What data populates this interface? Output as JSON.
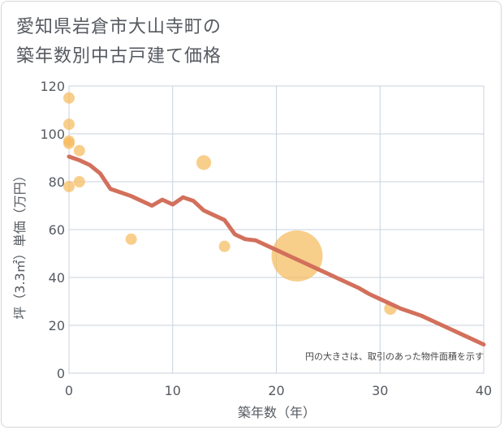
{
  "title_line1": "愛知県岩倉市大山寺町の",
  "title_line2": "築年数別中古戸建て価格",
  "chart_data": {
    "type": "scatter",
    "title": "愛知県岩倉市大山寺町の築年数別中古戸建て価格",
    "xlabel": "築年数（年）",
    "ylabel": "坪（3.3㎡）単価（万円）",
    "xlim": [
      0,
      40
    ],
    "ylim": [
      0,
      120
    ],
    "xticks": [
      0,
      10,
      20,
      30,
      40
    ],
    "yticks": [
      0,
      20,
      40,
      60,
      80,
      100,
      120
    ],
    "grid": true,
    "annotation": "円の大きさは、取引のあった物件面積を示す",
    "colors": {
      "point": "#f5b95a",
      "trend": "#d2705c",
      "grid": "#c8d2dc"
    },
    "points": [
      {
        "x": 0,
        "y": 115,
        "size": 1
      },
      {
        "x": 0,
        "y": 104,
        "size": 1
      },
      {
        "x": 0,
        "y": 97,
        "size": 1
      },
      {
        "x": 0,
        "y": 96,
        "size": 1
      },
      {
        "x": 1,
        "y": 93,
        "size": 1
      },
      {
        "x": 0,
        "y": 78,
        "size": 1
      },
      {
        "x": 1,
        "y": 80,
        "size": 1
      },
      {
        "x": 13,
        "y": 88,
        "size": 1.3
      },
      {
        "x": 6,
        "y": 56,
        "size": 1
      },
      {
        "x": 15,
        "y": 53,
        "size": 1
      },
      {
        "x": 22,
        "y": 49,
        "size": 4.5
      },
      {
        "x": 31,
        "y": 27,
        "size": 1.1
      }
    ],
    "trend": {
      "x": [
        0,
        1,
        2,
        3,
        4,
        5,
        6,
        7,
        8,
        9,
        10,
        11,
        12,
        13,
        14,
        15,
        16,
        17,
        18,
        19,
        20,
        21,
        22,
        23,
        24,
        25,
        26,
        27,
        28,
        29,
        30,
        31,
        32,
        33,
        34,
        35,
        36,
        37,
        38,
        39,
        40
      ],
      "y": [
        90.5,
        89,
        87,
        83.5,
        77,
        75.5,
        74,
        72,
        70,
        72.5,
        70.5,
        73.5,
        72,
        68,
        66,
        64,
        58,
        56,
        55.5,
        53.5,
        51.5,
        49.5,
        47.5,
        45.5,
        43.5,
        41.5,
        39.5,
        37.5,
        35.5,
        33,
        31,
        29,
        27,
        25.5,
        24,
        22,
        20,
        18,
        16,
        14,
        12
      ]
    }
  }
}
